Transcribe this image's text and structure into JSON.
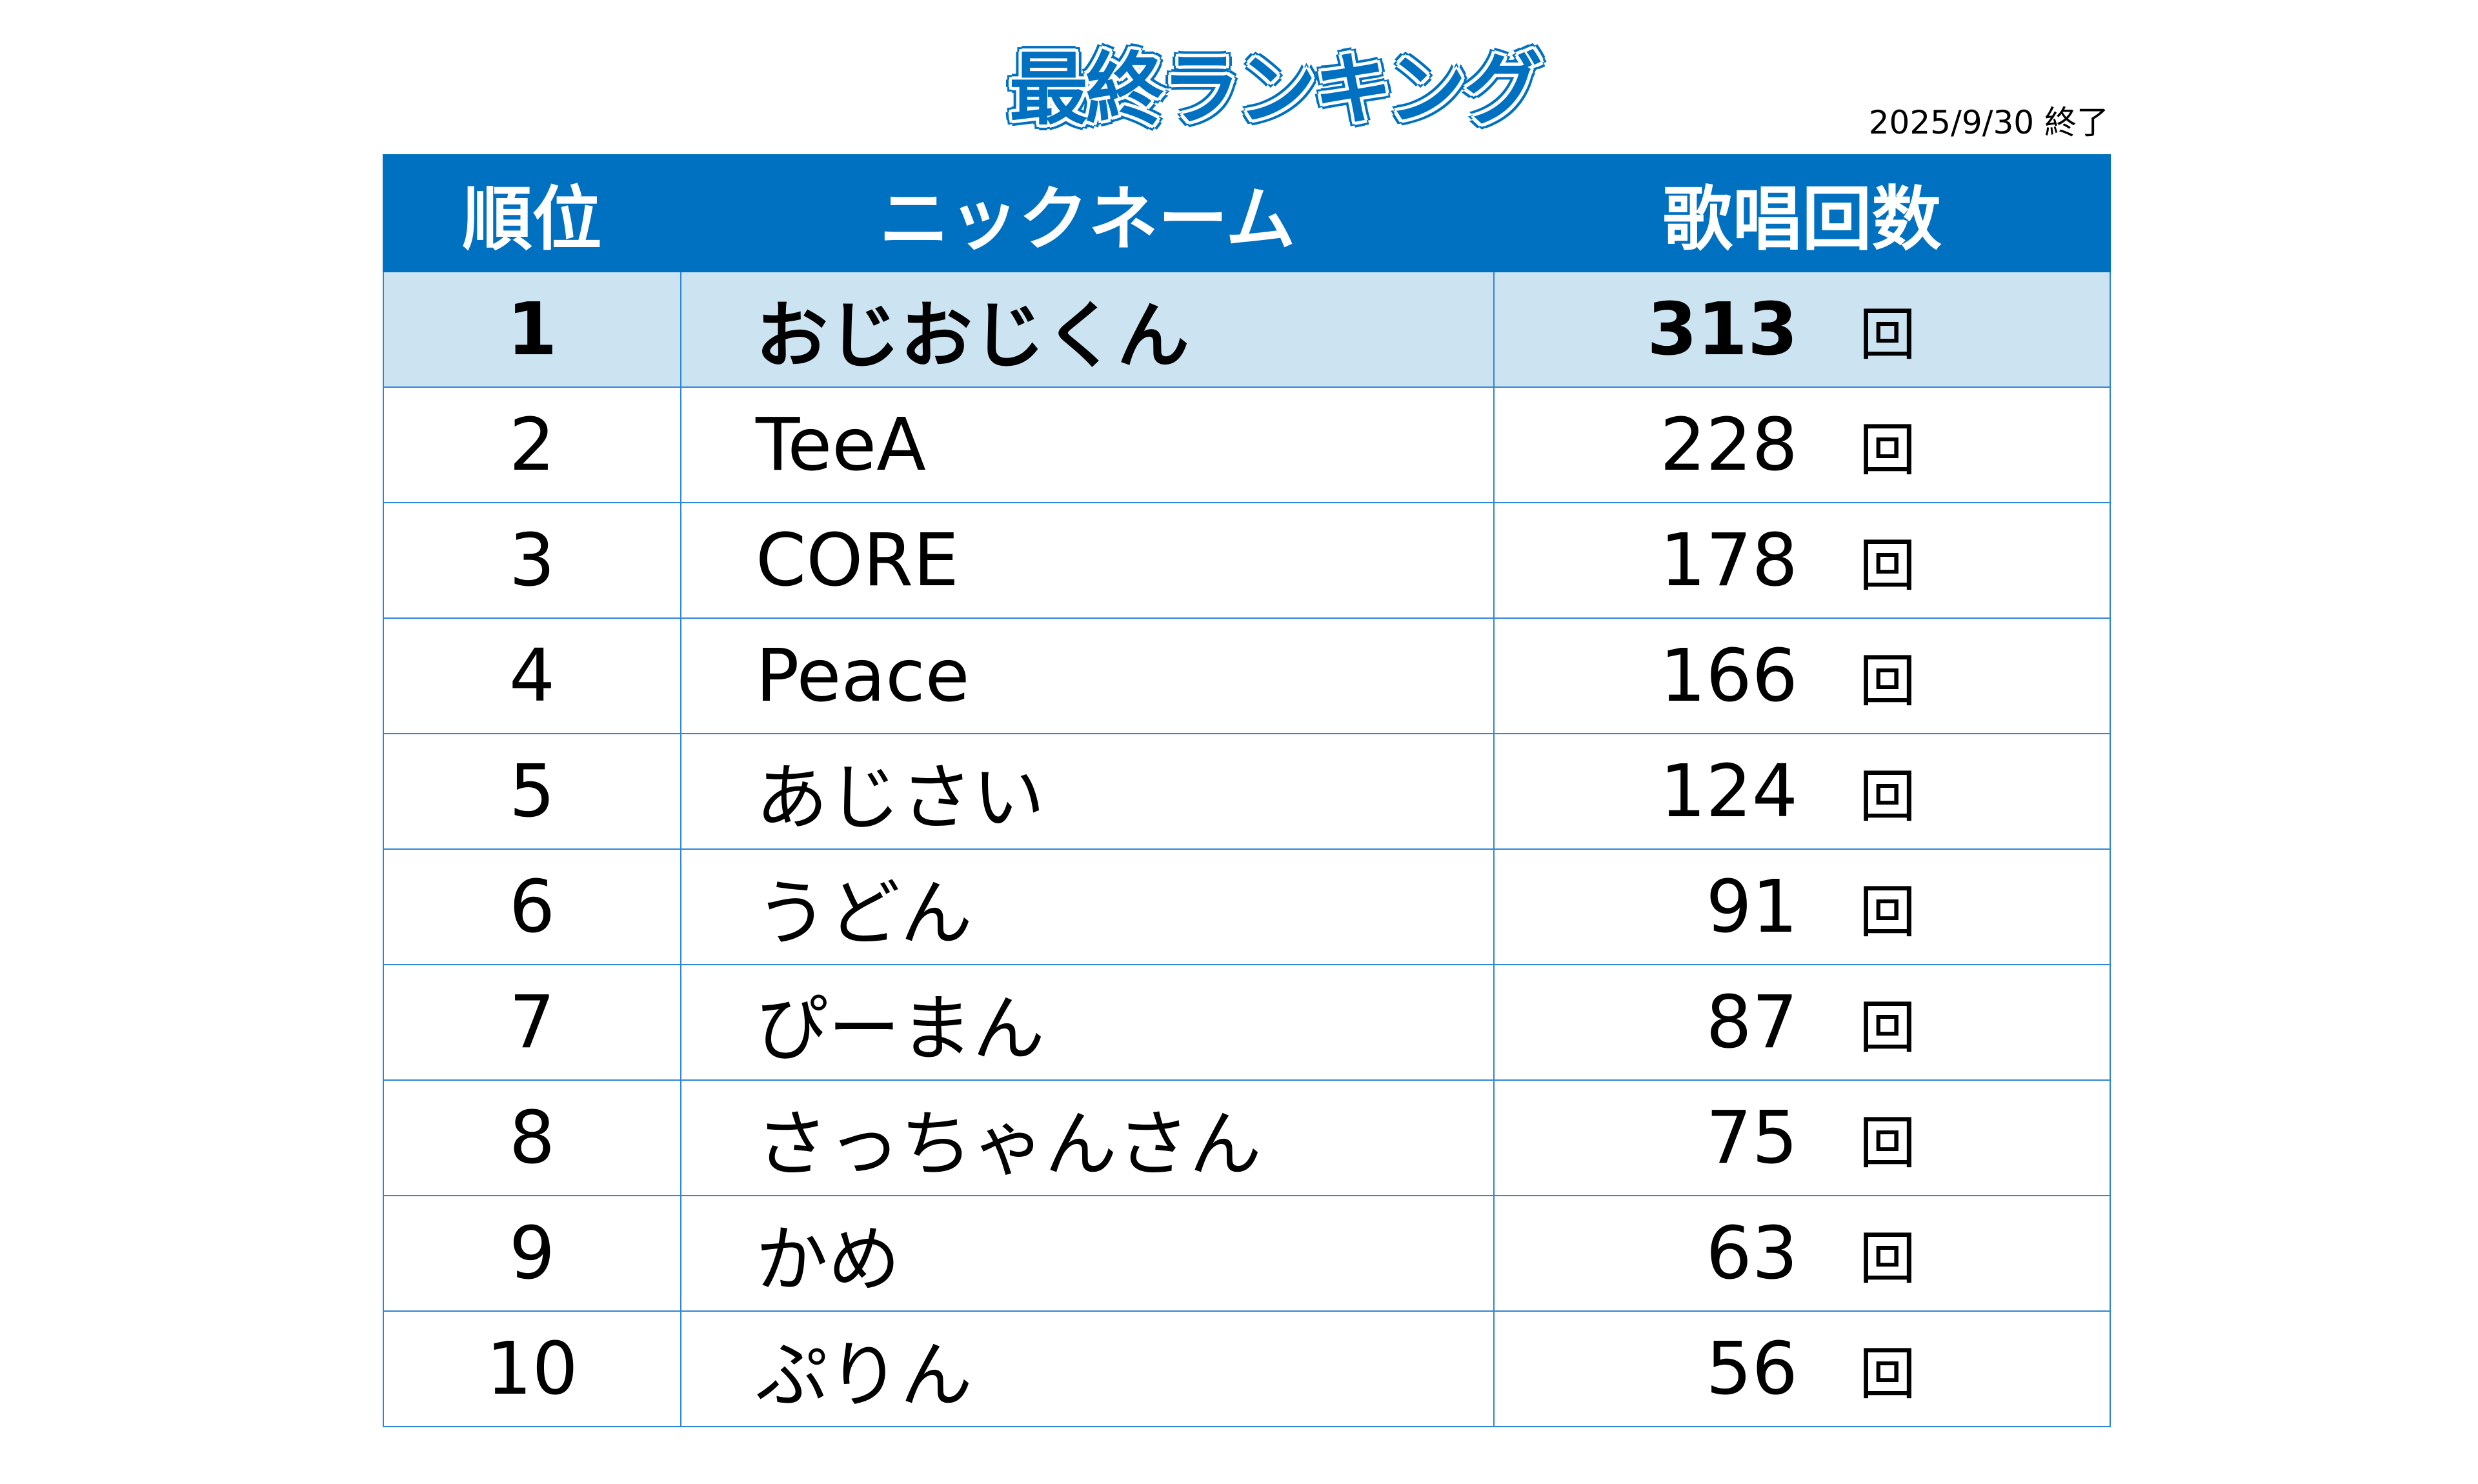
{
  "title": "最終ランキング",
  "date": "2025/9/30 終了",
  "headers": {
    "rank": "順位",
    "name": "ニックネーム",
    "count": "歌唱回数"
  },
  "unit": "回",
  "rows": [
    {
      "rank": "1",
      "name": "おじおじくん",
      "count": "313"
    },
    {
      "rank": "2",
      "name": "TeeA",
      "count": "228"
    },
    {
      "rank": "3",
      "name": "CORE",
      "count": "178"
    },
    {
      "rank": "4",
      "name": "Peace",
      "count": "166"
    },
    {
      "rank": "5",
      "name": "あじさい",
      "count": "124"
    },
    {
      "rank": "6",
      "name": "うどん",
      "count": "91"
    },
    {
      "rank": "7",
      "name": "ぴーまん",
      "count": "87"
    },
    {
      "rank": "8",
      "name": "さっちゃんさん",
      "count": "75"
    },
    {
      "rank": "9",
      "name": "かめ",
      "count": "63"
    },
    {
      "rank": "10",
      "name": "ぷりん",
      "count": "56"
    }
  ],
  "colors": {
    "header": "#0070c0",
    "highlight": "#cce3f2"
  }
}
